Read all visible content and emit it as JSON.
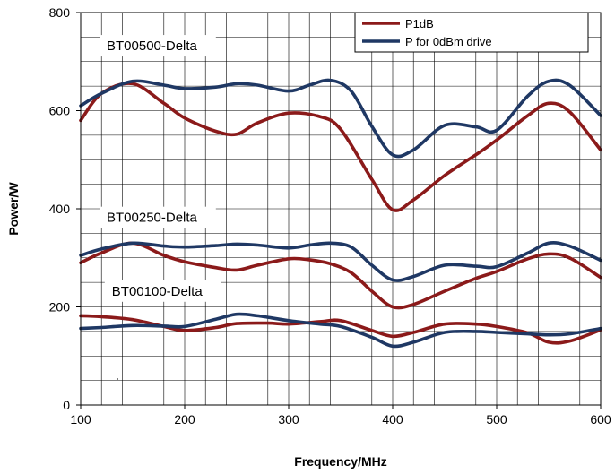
{
  "chart_data": {
    "type": "line",
    "title": "",
    "xlabel": "Frequency/MHz",
    "ylabel": "Power/W",
    "xlim": [
      100,
      600
    ],
    "ylim": [
      0,
      800
    ],
    "x_ticks": [
      100,
      200,
      300,
      400,
      500,
      600
    ],
    "y_ticks": [
      0,
      200,
      400,
      600,
      800
    ],
    "x_minor_step": 20,
    "y_minor_step": 50,
    "grid": true,
    "legend": {
      "position": "top-right",
      "entries": [
        {
          "name": "P1dB",
          "color": "#8B1A1A"
        },
        {
          "name": "P for 0dBm drive",
          "color": "#1F3864"
        }
      ]
    },
    "group_labels": [
      {
        "text": "BT00500-Delta",
        "x": 125,
        "y": 725
      },
      {
        "text": "BT00250-Delta",
        "x": 125,
        "y": 375
      },
      {
        "text": "BT00100-Delta",
        "x": 130,
        "y": 225
      }
    ],
    "series": [
      {
        "name": "P1dB",
        "group": "BT00500-Delta",
        "color": "#8B1A1A",
        "x": [
          100,
          120,
          150,
          180,
          200,
          230,
          250,
          270,
          300,
          330,
          350,
          380,
          400,
          420,
          450,
          480,
          500,
          530,
          550,
          570,
          600
        ],
        "y": [
          580,
          635,
          655,
          615,
          585,
          558,
          552,
          575,
          595,
          588,
          562,
          460,
          398,
          418,
          468,
          510,
          540,
          590,
          615,
          598,
          520
        ]
      },
      {
        "name": "P for 0dBm drive",
        "group": "BT00500-Delta",
        "color": "#1F3864",
        "x": [
          100,
          120,
          150,
          180,
          200,
          230,
          250,
          270,
          300,
          320,
          340,
          360,
          380,
          400,
          420,
          450,
          480,
          500,
          530,
          550,
          570,
          600
        ],
        "y": [
          610,
          635,
          660,
          652,
          645,
          648,
          655,
          652,
          640,
          652,
          662,
          640,
          568,
          510,
          520,
          570,
          567,
          560,
          630,
          660,
          652,
          590
        ]
      },
      {
        "name": "P1dB",
        "group": "BT00250-Delta",
        "color": "#8B1A1A",
        "x": [
          100,
          120,
          150,
          180,
          200,
          230,
          250,
          270,
          300,
          320,
          340,
          360,
          380,
          400,
          420,
          450,
          480,
          500,
          530,
          550,
          570,
          600
        ],
        "y": [
          290,
          310,
          330,
          305,
          292,
          280,
          275,
          285,
          298,
          296,
          288,
          270,
          232,
          200,
          205,
          232,
          258,
          272,
          298,
          308,
          300,
          260
        ]
      },
      {
        "name": "P for 0dBm drive",
        "group": "BT00250-Delta",
        "color": "#1F3864",
        "x": [
          100,
          120,
          150,
          180,
          200,
          230,
          250,
          270,
          300,
          320,
          340,
          360,
          380,
          400,
          420,
          450,
          480,
          500,
          530,
          550,
          570,
          600
        ],
        "y": [
          305,
          318,
          330,
          324,
          322,
          325,
          328,
          326,
          320,
          326,
          330,
          322,
          285,
          255,
          262,
          285,
          283,
          282,
          310,
          330,
          324,
          295
        ]
      },
      {
        "name": "P1dB",
        "group": "BT00100-Delta",
        "color": "#8B1A1A",
        "x": [
          100,
          120,
          150,
          180,
          200,
          230,
          250,
          280,
          300,
          330,
          350,
          380,
          400,
          420,
          450,
          480,
          500,
          530,
          550,
          570,
          600
        ],
        "y": [
          182,
          180,
          174,
          160,
          152,
          158,
          166,
          167,
          165,
          170,
          172,
          152,
          140,
          148,
          165,
          165,
          160,
          147,
          128,
          130,
          153
        ]
      },
      {
        "name": "P for 0dBm drive",
        "group": "BT00100-Delta",
        "color": "#1F3864",
        "x": [
          100,
          120,
          150,
          180,
          200,
          230,
          250,
          270,
          300,
          330,
          350,
          380,
          400,
          420,
          450,
          480,
          500,
          530,
          550,
          570,
          600
        ],
        "y": [
          156,
          158,
          162,
          161,
          160,
          175,
          185,
          182,
          172,
          165,
          160,
          138,
          120,
          128,
          148,
          150,
          148,
          145,
          143,
          145,
          156
        ]
      }
    ]
  }
}
